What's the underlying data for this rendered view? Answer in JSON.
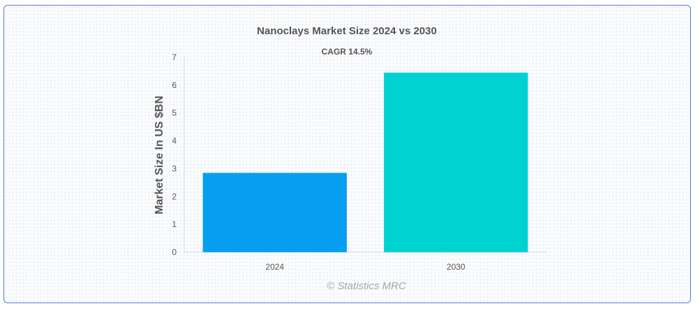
{
  "chart_data": {
    "type": "bar",
    "title": "Nanoclays Market Size 2024 vs 2030",
    "subtitle": "CAGR 14.5%",
    "xlabel": "",
    "ylabel": "Market Size In US $BN",
    "categories": [
      "2024",
      "2030"
    ],
    "values": [
      2.85,
      6.45
    ],
    "colors": [
      "#069ff0",
      "#00d2d2"
    ],
    "ylim": [
      0,
      7
    ],
    "yticks": [
      "0",
      "1",
      "2",
      "3",
      "4",
      "5",
      "6",
      "7"
    ],
    "grid": false,
    "legend": "none"
  },
  "credit": "© Statistics MRC"
}
